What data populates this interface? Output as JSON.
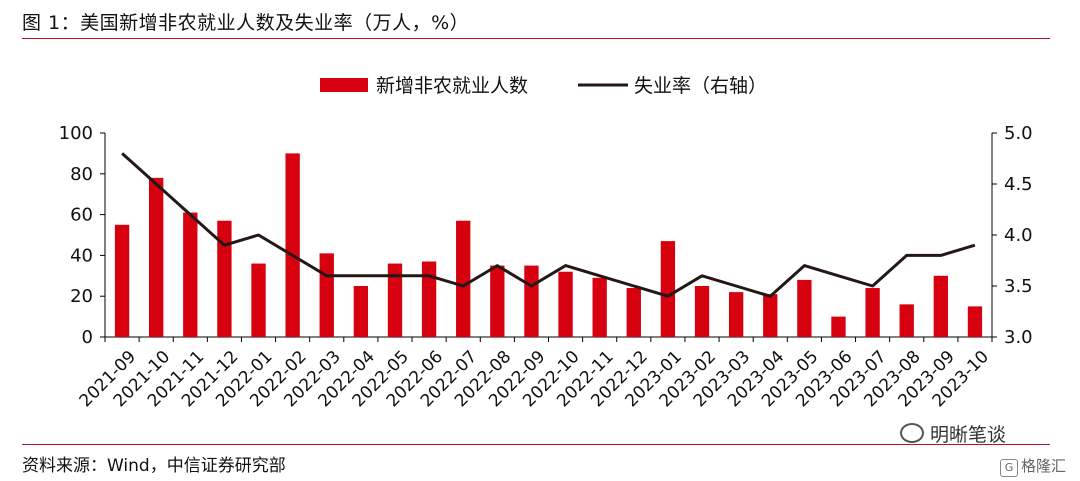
{
  "page": {
    "title": "图 1：美国新增非农就业人数及失业率（万人，%）",
    "source": "资料来源：Wind，中信证券研究部",
    "watermark_text": "明晰笔谈",
    "watermark_badge": "格隆汇"
  },
  "chart_data": {
    "type": "bar",
    "title": "",
    "xlabel": "",
    "ylabel": "",
    "legend_position": "top-center",
    "categories": [
      "2021-09",
      "2021-10",
      "2021-11",
      "2021-12",
      "2022-01",
      "2022-02",
      "2022-03",
      "2022-04",
      "2022-05",
      "2022-06",
      "2022-07",
      "2022-08",
      "2022-09",
      "2022-10",
      "2022-11",
      "2022-12",
      "2023-01",
      "2023-02",
      "2023-03",
      "2023-04",
      "2023-05",
      "2023-06",
      "2023-07",
      "2023-08",
      "2023-09",
      "2023-10"
    ],
    "series": [
      {
        "name": "新增非农就业人数",
        "type": "bar",
        "axis": "left",
        "color": "#d7000f",
        "values": [
          55,
          78,
          61,
          57,
          36,
          90,
          41,
          25,
          36,
          37,
          57,
          35,
          35,
          32,
          29,
          24,
          47,
          25,
          22,
          21,
          28,
          10,
          24,
          16,
          30,
          15
        ]
      },
      {
        "name": "失业率（右轴）",
        "type": "line",
        "axis": "right",
        "color": "#231815",
        "values": [
          4.8,
          4.5,
          4.2,
          3.9,
          4.0,
          3.8,
          3.6,
          3.6,
          3.6,
          3.6,
          3.5,
          3.7,
          3.5,
          3.7,
          3.6,
          3.5,
          3.4,
          3.6,
          3.5,
          3.4,
          3.7,
          3.6,
          3.5,
          3.8,
          3.8,
          3.9
        ]
      }
    ],
    "y_left": {
      "range": [
        0,
        100
      ],
      "ticks": [
        "0",
        "20",
        "40",
        "60",
        "80",
        "100"
      ]
    },
    "y_right": {
      "range": [
        3.0,
        5.0
      ],
      "ticks": [
        "3.0",
        "3.5",
        "4.0",
        "4.5",
        "5.0"
      ]
    },
    "grid": false
  }
}
